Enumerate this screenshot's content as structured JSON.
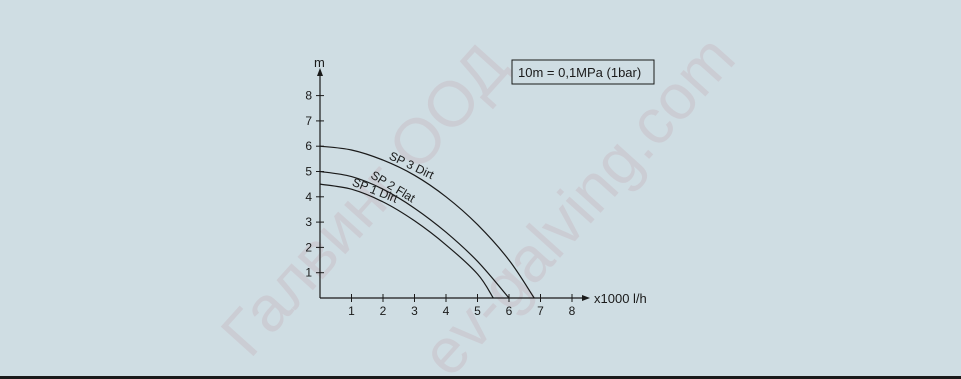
{
  "chart_data": {
    "type": "line",
    "title": "",
    "ylabel": "m",
    "xlabel": "x1000 l/h",
    "xlim": [
      0,
      8.8
    ],
    "ylim": [
      0,
      9
    ],
    "xticks": [
      1,
      2,
      3,
      4,
      5,
      6,
      7,
      8
    ],
    "yticks": [
      1,
      2,
      3,
      4,
      5,
      6,
      7,
      8
    ],
    "grid": false,
    "annotation": "10m = 0,1MPa (1bar)",
    "series": [
      {
        "name": "SP 3 Dirt",
        "x": [
          0,
          1,
          2,
          3,
          4,
          5,
          6,
          6.8
        ],
        "y": [
          6.0,
          5.85,
          5.45,
          4.85,
          4.0,
          2.9,
          1.5,
          0
        ]
      },
      {
        "name": "SP 2 Flat",
        "x": [
          0,
          1,
          2,
          3,
          4,
          5,
          6.0
        ],
        "y": [
          5.0,
          4.8,
          4.3,
          3.55,
          2.6,
          1.45,
          0
        ]
      },
      {
        "name": "SP 1 Dirt",
        "x": [
          0,
          1,
          2,
          3,
          4,
          5,
          5.5
        ],
        "y": [
          4.5,
          4.3,
          3.8,
          3.05,
          2.1,
          0.95,
          0
        ]
      }
    ]
  },
  "watermark": {
    "line1": "Галвинг ООД",
    "line2": "ev-galving.com"
  }
}
